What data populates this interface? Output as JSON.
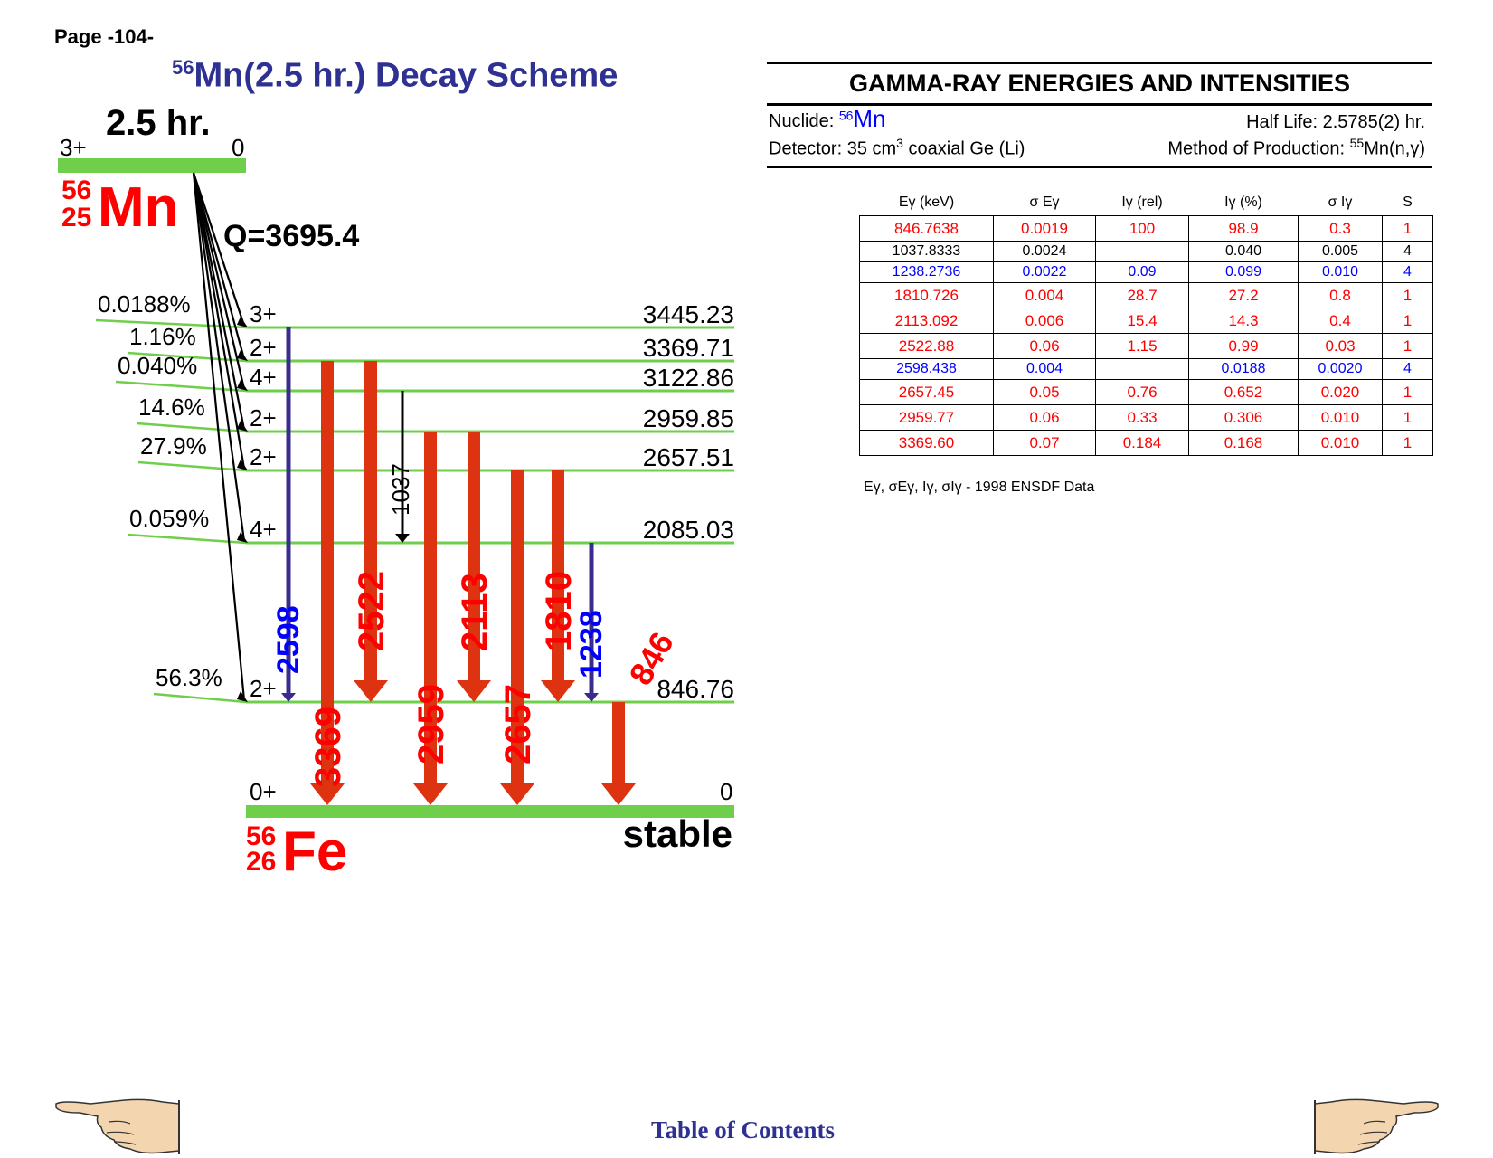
{
  "page": {
    "label": "Page -104-"
  },
  "scheme": {
    "title_sup": "56",
    "title_text": "Mn(2.5 hr.) Decay Scheme",
    "parent": {
      "halflife": "2.5 hr.",
      "spin": "3+",
      "energy": "0",
      "mass": "56",
      "z": "25",
      "symbol": "Mn"
    },
    "q_value": "Q=3695.4",
    "daughter": {
      "spin": "0+",
      "energy": "0",
      "mass": "56",
      "z": "26",
      "symbol": "Fe",
      "status": "stable"
    },
    "levels": [
      {
        "energy": "3445.23",
        "spin": "3+",
        "beta": "0.0188%"
      },
      {
        "energy": "3369.71",
        "spin": "2+",
        "beta": "1.16%"
      },
      {
        "energy": "3122.86",
        "spin": "4+",
        "beta": "0.040%"
      },
      {
        "energy": "2959.85",
        "spin": "2+",
        "beta": "14.6%"
      },
      {
        "energy": "2657.51",
        "spin": "2+",
        "beta": "27.9%"
      },
      {
        "energy": "2085.03",
        "spin": "4+",
        "beta": "0.059%"
      },
      {
        "energy": "846.76",
        "spin": "2+",
        "beta": "56.3%"
      }
    ],
    "transitions": [
      {
        "label": "2598",
        "color": "#0000ff"
      },
      {
        "label": "3369",
        "color": "#ff0000"
      },
      {
        "label": "2522",
        "color": "#ff0000"
      },
      {
        "label": "1037",
        "color": "#000000"
      },
      {
        "label": "2959",
        "color": "#ff0000"
      },
      {
        "label": "2113",
        "color": "#ff0000"
      },
      {
        "label": "2657",
        "color": "#ff0000"
      },
      {
        "label": "1810",
        "color": "#ff0000"
      },
      {
        "label": "1238",
        "color": "#0000ff"
      },
      {
        "label": "846",
        "color": "#ff0000"
      }
    ]
  },
  "gamma": {
    "heading": "GAMMA-RAY ENERGIES AND INTENSITIES",
    "nuclide_label": "Nuclide: ",
    "nuclide_sup": "56",
    "nuclide_sym": "Mn",
    "half_life": "Half Life: 2.5785(2) hr.",
    "detector_a": "Detector: 35 cm",
    "detector_sup": "3",
    "detector_b": " coaxial Ge (Li)",
    "production_a": "Method of Production: ",
    "production_sup": "55",
    "production_b": "Mn(n,γ)",
    "headers": [
      "Eγ (keV)",
      "σ Eγ",
      "Iγ (rel)",
      "Iγ (%)",
      "σ Iγ",
      "S"
    ],
    "rows": [
      {
        "color": "red",
        "e": "846.7638",
        "se": "0.0019",
        "irel": "100",
        "ipct": "98.9",
        "si": "0.3",
        "s": "1"
      },
      {
        "color": "black",
        "e": "1037.8333",
        "se": "0.0024",
        "irel": "",
        "ipct": "0.040",
        "si": "0.005",
        "s": "4"
      },
      {
        "color": "blue",
        "e": "1238.2736",
        "se": "0.0022",
        "irel": "0.09",
        "ipct": "0.099",
        "si": "0.010",
        "s": "4"
      },
      {
        "color": "red",
        "e": "1810.726",
        "se": "0.004",
        "irel": "28.7",
        "ipct": "27.2",
        "si": "0.8",
        "s": "1"
      },
      {
        "color": "red",
        "e": "2113.092",
        "se": "0.006",
        "irel": "15.4",
        "ipct": "14.3",
        "si": "0.4",
        "s": "1"
      },
      {
        "color": "red",
        "e": "2522.88",
        "se": "0.06",
        "irel": "1.15",
        "ipct": "0.99",
        "si": "0.03",
        "s": "1"
      },
      {
        "color": "blue",
        "e": "2598.438",
        "se": "0.004",
        "irel": "",
        "ipct": "0.0188",
        "si": "0.0020",
        "s": "4"
      },
      {
        "color": "red",
        "e": "2657.45",
        "se": "0.05",
        "irel": "0.76",
        "ipct": "0.652",
        "si": "0.020",
        "s": "1"
      },
      {
        "color": "red",
        "e": "2959.77",
        "se": "0.06",
        "irel": "0.33",
        "ipct": "0.306",
        "si": "0.010",
        "s": "1"
      },
      {
        "color": "red",
        "e": "3369.60",
        "se": "0.07",
        "irel": "0.184",
        "ipct": "0.168",
        "si": "0.010",
        "s": "1"
      }
    ],
    "note": "Eγ, σEγ, Iγ, σIγ - 1998 ENSDF Data"
  },
  "footer": {
    "toc": "Table of Contents",
    "prev_icon": "hand-pointing-left-icon",
    "next_icon": "hand-pointing-right-icon"
  }
}
